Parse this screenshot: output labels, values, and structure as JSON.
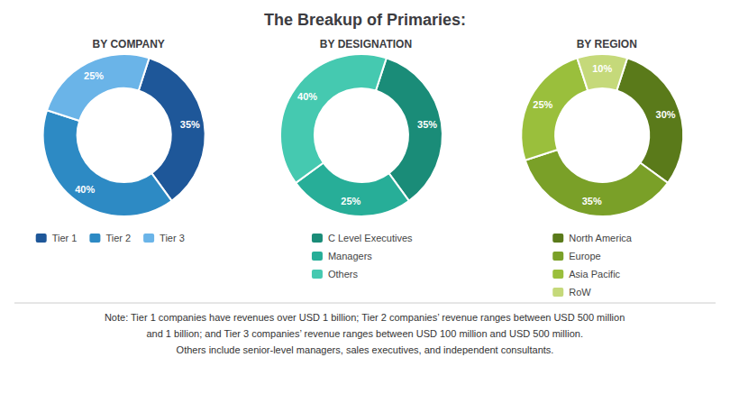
{
  "title": "The Breakup of Primaries:",
  "chart_data": [
    {
      "type": "pie",
      "title": "BY COMPANY",
      "categories": [
        "Tier 1",
        "Tier 2",
        "Tier 3"
      ],
      "values": [
        35,
        40,
        25
      ],
      "value_labels": [
        "35%",
        "40%",
        "25%"
      ],
      "colors": [
        "#1e5799",
        "#2d8ac4",
        "#6ab4e8"
      ],
      "data_labels": true,
      "legend": "bottom"
    },
    {
      "type": "pie",
      "title": "BY DESIGNATION",
      "categories": [
        "C Level Executives",
        "Managers",
        "Others"
      ],
      "values": [
        35,
        25,
        40
      ],
      "value_labels": [
        "35%",
        "25%",
        "40%"
      ],
      "colors": [
        "#1a8c78",
        "#27ae98",
        "#45c9b0"
      ],
      "data_labels": true,
      "legend": "bottom"
    },
    {
      "type": "pie",
      "title": "BY REGION",
      "categories": [
        "North America",
        "Europe",
        "Asia Pacific",
        "RoW"
      ],
      "values": [
        30,
        35,
        25,
        10
      ],
      "value_labels": [
        "30%",
        "35%",
        "25%",
        "10%"
      ],
      "colors": [
        "#5a7a1a",
        "#7aa028",
        "#9abf3c",
        "#c5d97a"
      ],
      "data_labels": true,
      "legend": "bottom"
    }
  ],
  "annotations": [
    "Note: Tier 1 companies have revenues over USD 1 billion; Tier 2 companies’ revenue ranges between USD 500 million",
    "and 1 billion; and Tier 3 companies’ revenue ranges between USD 100 million and USD 500 million.",
    "Others include senior-level managers, sales executives, and independent consultants."
  ]
}
